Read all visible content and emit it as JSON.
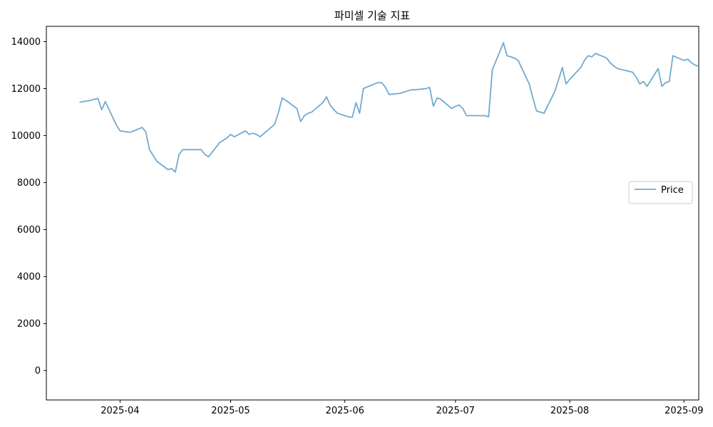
{
  "chart_data": {
    "type": "line",
    "title": "파미셀 기술 지표",
    "xlabel": "",
    "ylabel": "",
    "x_range": [
      "2025-03-12",
      "2025-09-05"
    ],
    "ylim": [
      -1250,
      14650
    ],
    "x_ticks": [
      {
        "date": "2025-04-01",
        "label": "2025-04"
      },
      {
        "date": "2025-05-01",
        "label": "2025-05"
      },
      {
        "date": "2025-06-01",
        "label": "2025-06"
      },
      {
        "date": "2025-07-01",
        "label": "2025-07"
      },
      {
        "date": "2025-08-01",
        "label": "2025-08"
      },
      {
        "date": "2025-09-01",
        "label": "2025-09"
      }
    ],
    "y_ticks": [
      0,
      2000,
      4000,
      6000,
      8000,
      10000,
      12000,
      14000
    ],
    "grid": false,
    "legend_position": "right",
    "series": [
      {
        "name": "Price",
        "color": "#73a9cf",
        "style": "solid",
        "points": [
          [
            "2025-03-21",
            11420
          ],
          [
            "2025-03-24",
            11500
          ],
          [
            "2025-03-25",
            11550
          ],
          [
            "2025-03-26",
            11580
          ],
          [
            "2025-03-27",
            11100
          ],
          [
            "2025-03-28",
            11450
          ],
          [
            "2025-03-31",
            10450
          ],
          [
            "2025-04-01",
            10200
          ],
          [
            "2025-04-02",
            10180
          ],
          [
            "2025-04-03",
            10150
          ],
          [
            "2025-04-04",
            10150
          ],
          [
            "2025-04-07",
            10350
          ],
          [
            "2025-04-08",
            10150
          ],
          [
            "2025-04-09",
            9400
          ],
          [
            "2025-04-10",
            9150
          ],
          [
            "2025-04-11",
            8900
          ],
          [
            "2025-04-14",
            8550
          ],
          [
            "2025-04-15",
            8600
          ],
          [
            "2025-04-16",
            8450
          ],
          [
            "2025-04-17",
            9200
          ],
          [
            "2025-04-18",
            9400
          ],
          [
            "2025-04-21",
            9400
          ],
          [
            "2025-04-22",
            9400
          ],
          [
            "2025-04-23",
            9400
          ],
          [
            "2025-04-24",
            9200
          ],
          [
            "2025-04-25",
            9100
          ],
          [
            "2025-04-28",
            9700
          ],
          [
            "2025-04-29",
            9800
          ],
          [
            "2025-04-30",
            9900
          ],
          [
            "2025-05-01",
            10050
          ],
          [
            "2025-05-02",
            9950
          ],
          [
            "2025-05-05",
            10200
          ],
          [
            "2025-05-06",
            10050
          ],
          [
            "2025-05-07",
            10100
          ],
          [
            "2025-05-08",
            10050
          ],
          [
            "2025-05-09",
            9950
          ],
          [
            "2025-05-12",
            10350
          ],
          [
            "2025-05-13",
            10500
          ],
          [
            "2025-05-14",
            11000
          ],
          [
            "2025-05-15",
            11600
          ],
          [
            "2025-05-16",
            11500
          ],
          [
            "2025-05-19",
            11150
          ],
          [
            "2025-05-20",
            10600
          ],
          [
            "2025-05-21",
            10850
          ],
          [
            "2025-05-22",
            10950
          ],
          [
            "2025-05-23",
            11000
          ],
          [
            "2025-05-26",
            11400
          ],
          [
            "2025-05-27",
            11650
          ],
          [
            "2025-05-28",
            11300
          ],
          [
            "2025-05-29",
            11100
          ],
          [
            "2025-05-30",
            10950
          ],
          [
            "2025-06-02",
            10800
          ],
          [
            "2025-06-03",
            10780
          ],
          [
            "2025-06-04",
            11400
          ],
          [
            "2025-06-05",
            10950
          ],
          [
            "2025-06-06",
            12000
          ],
          [
            "2025-06-09",
            12200
          ],
          [
            "2025-06-10",
            12250
          ],
          [
            "2025-06-11",
            12250
          ],
          [
            "2025-06-12",
            12050
          ],
          [
            "2025-06-13",
            11750
          ],
          [
            "2025-06-16",
            11800
          ],
          [
            "2025-06-17",
            11850
          ],
          [
            "2025-06-18",
            11900
          ],
          [
            "2025-06-19",
            11950
          ],
          [
            "2025-06-20",
            11950
          ],
          [
            "2025-06-23",
            12000
          ],
          [
            "2025-06-24",
            12050
          ],
          [
            "2025-06-25",
            11250
          ],
          [
            "2025-06-26",
            11600
          ],
          [
            "2025-06-27",
            11550
          ],
          [
            "2025-06-30",
            11150
          ],
          [
            "2025-07-01",
            11250
          ],
          [
            "2025-07-02",
            11300
          ],
          [
            "2025-07-03",
            11150
          ],
          [
            "2025-07-04",
            10850
          ],
          [
            "2025-07-07",
            10850
          ],
          [
            "2025-07-08",
            10850
          ],
          [
            "2025-07-09",
            10850
          ],
          [
            "2025-07-10",
            10800
          ],
          [
            "2025-07-11",
            12800
          ],
          [
            "2025-07-14",
            13950
          ],
          [
            "2025-07-15",
            13400
          ],
          [
            "2025-07-16",
            13350
          ],
          [
            "2025-07-17",
            13300
          ],
          [
            "2025-07-18",
            13200
          ],
          [
            "2025-07-21",
            12200
          ],
          [
            "2025-07-22",
            11600
          ],
          [
            "2025-07-23",
            11050
          ],
          [
            "2025-07-24",
            11000
          ],
          [
            "2025-07-25",
            10950
          ],
          [
            "2025-07-28",
            11900
          ],
          [
            "2025-07-29",
            12400
          ],
          [
            "2025-07-30",
            12900
          ],
          [
            "2025-07-31",
            12200
          ],
          [
            "2025-08-01",
            12400
          ],
          [
            "2025-08-04",
            12900
          ],
          [
            "2025-08-05",
            13200
          ],
          [
            "2025-08-06",
            13400
          ],
          [
            "2025-08-07",
            13350
          ],
          [
            "2025-08-08",
            13500
          ],
          [
            "2025-08-11",
            13300
          ],
          [
            "2025-08-12",
            13100
          ],
          [
            "2025-08-13",
            12950
          ],
          [
            "2025-08-14",
            12850
          ],
          [
            "2025-08-18",
            12700
          ],
          [
            "2025-08-19",
            12500
          ],
          [
            "2025-08-20",
            12200
          ],
          [
            "2025-08-21",
            12300
          ],
          [
            "2025-08-22",
            12100
          ],
          [
            "2025-08-25",
            12850
          ],
          [
            "2025-08-26",
            12100
          ],
          [
            "2025-08-27",
            12250
          ],
          [
            "2025-08-28",
            12300
          ],
          [
            "2025-08-29",
            13400
          ],
          [
            "2025-09-01",
            13200
          ],
          [
            "2025-09-02",
            13250
          ],
          [
            "2025-09-03",
            13100
          ],
          [
            "2025-09-04",
            13000
          ],
          [
            "2025-09-05",
            12950
          ]
        ]
      }
    ]
  }
}
